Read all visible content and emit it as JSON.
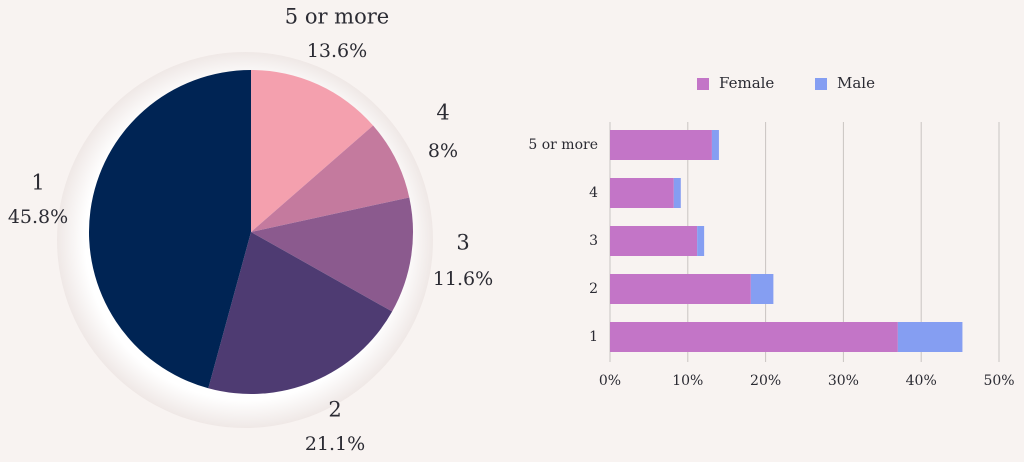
{
  "chart_data": [
    {
      "type": "pie",
      "categories": [
        "1",
        "2",
        "3",
        "4",
        "5 or more"
      ],
      "values": [
        45.8,
        21.1,
        11.6,
        8,
        13.6
      ],
      "value_labels": [
        "45.8%",
        "21.1%",
        "11.6%",
        "8%",
        "13.6%"
      ],
      "colors": [
        "#002454",
        "#4e3b72",
        "#8b5a8e",
        "#c47a9e",
        "#f4a0ae"
      ]
    },
    {
      "type": "bar",
      "orientation": "horizontal",
      "stacked": true,
      "categories": [
        "5 or more",
        "4",
        "3",
        "2",
        "1"
      ],
      "series": [
        {
          "name": "Female",
          "color": "#c375c7",
          "values": [
            13.1,
            8.2,
            11.2,
            18.1,
            37.0
          ]
        },
        {
          "name": "Male",
          "color": "#859ef2",
          "values": [
            0.9,
            0.9,
            0.9,
            2.9,
            8.3
          ]
        }
      ],
      "xlim": [
        0,
        50
      ],
      "xticks": [
        "0%",
        "10%",
        "20%",
        "30%",
        "40%",
        "50%"
      ],
      "grid": true,
      "legend_position": "top"
    }
  ]
}
